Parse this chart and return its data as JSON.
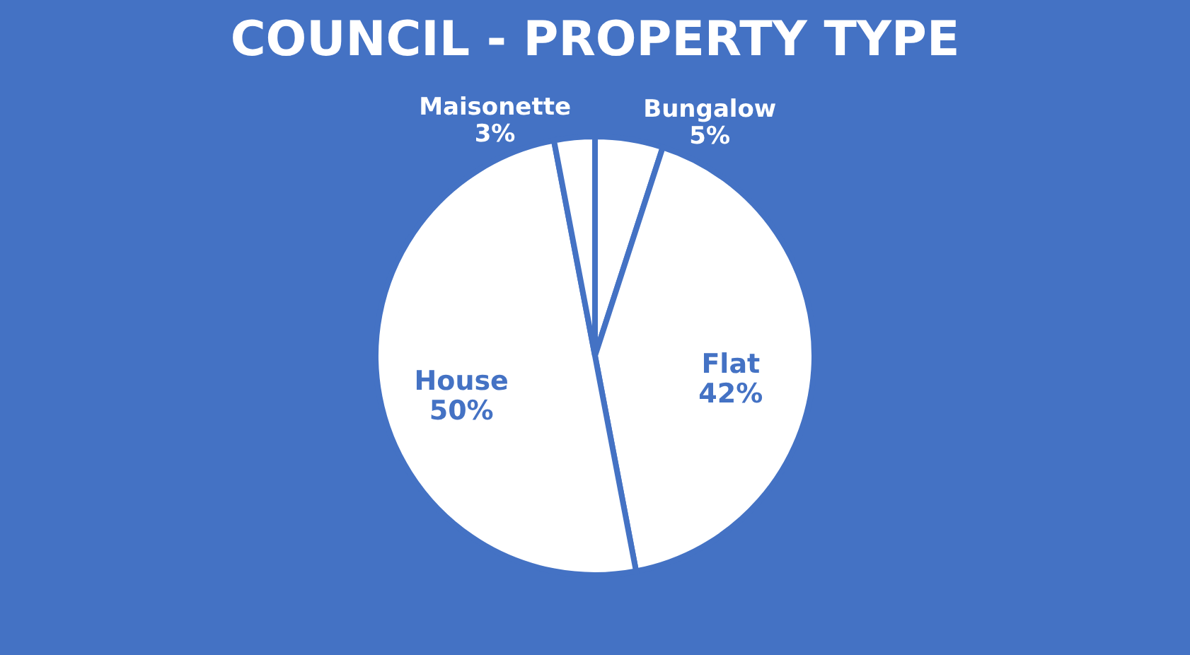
{
  "chart_data": {
    "type": "pie",
    "title": "COUNCIL - PROPERTY TYPE",
    "categories": [
      "Bungalow",
      "Flat",
      "House",
      "Maisonette"
    ],
    "values": [
      5,
      42,
      50,
      3
    ],
    "value_labels": [
      "5%",
      "42%",
      "50%",
      "3%"
    ],
    "colors": [
      "#ffffff",
      "#ffffff",
      "#ffffff",
      "#ffffff"
    ],
    "legend": false
  }
}
